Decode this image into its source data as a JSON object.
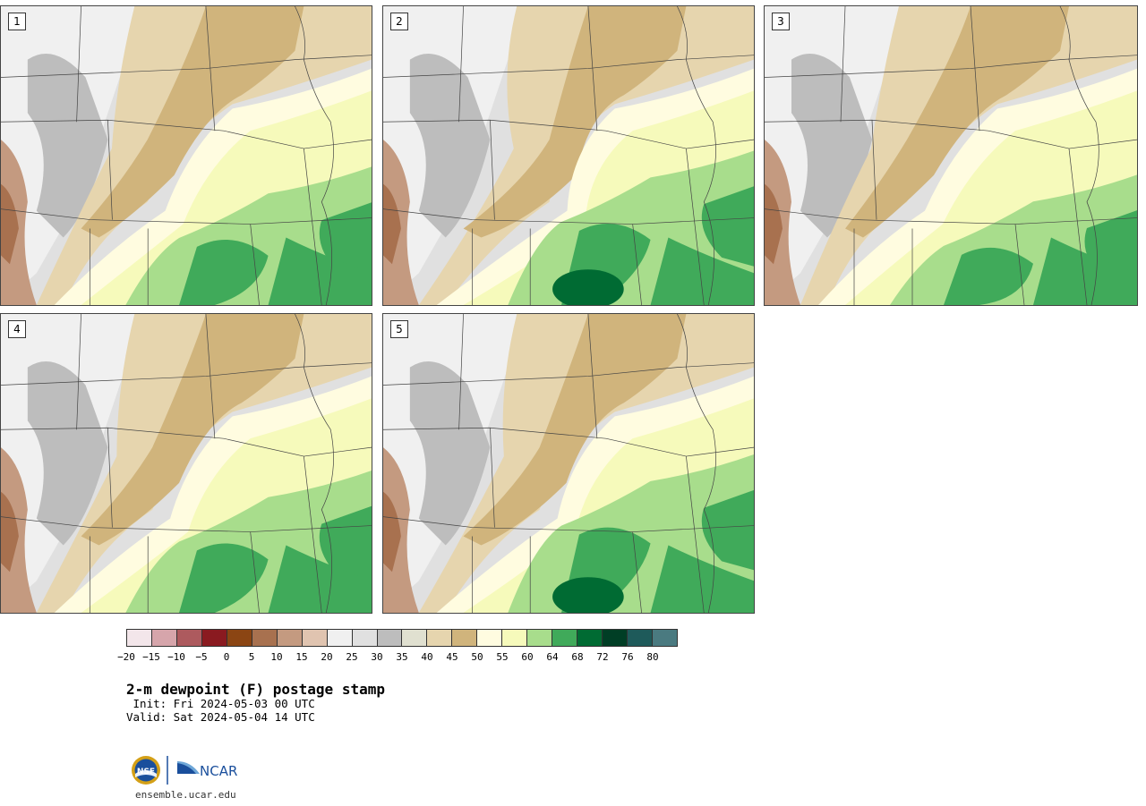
{
  "title": "2-m dewpoint (F) postage stamp",
  "init": " Init: Fri 2024-05-03 00 UTC",
  "valid": "Valid: Sat 2024-05-04 14 UTC",
  "site": "ensemble.ucar.edu",
  "logos": {
    "nsf": "NSF",
    "ncar": "NCAR"
  },
  "panels": [
    {
      "label": "1",
      "moist": 0.95,
      "green": 0.55
    },
    {
      "label": "2",
      "moist": 1.15,
      "green": 0.75
    },
    {
      "label": "3",
      "moist": 0.9,
      "green": 0.45
    },
    {
      "label": "4",
      "moist": 1.0,
      "green": 0.6
    },
    {
      "label": "5",
      "moist": 1.05,
      "green": 0.8
    }
  ],
  "colorbar": {
    "colors": [
      "#f3e6ea",
      "#d6a5ab",
      "#ad5a5e",
      "#8a1a20",
      "#8b4513",
      "#a8714f",
      "#c49a80",
      "#e0c4b0",
      "#f0f0f0",
      "#e0e0e0",
      "#bdbdbd",
      "#e0e0d0",
      "#e6d5ae",
      "#d0b47c",
      "#fffce0",
      "#f6fabb",
      "#a8dd8c",
      "#40aa5a",
      "#006b33",
      "#003e25",
      "#1e5a5a",
      "#4a7a80"
    ],
    "ticks": [
      "−20",
      "−15",
      "−10",
      "−5",
      "0",
      "5",
      "10",
      "15",
      "20",
      "25",
      "30",
      "35",
      "40",
      "45",
      "50",
      "55",
      "60",
      "64",
      "68",
      "72",
      "76",
      "80"
    ]
  }
}
